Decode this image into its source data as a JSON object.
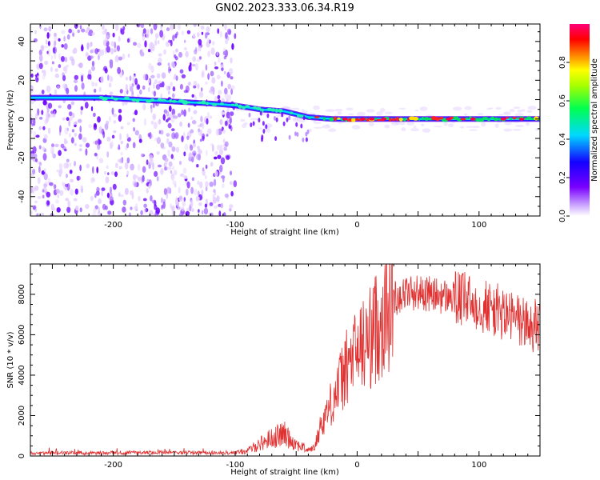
{
  "title": "GN02.2023.333.06.34.R19",
  "colors": {
    "snr_line": "#e03030",
    "axis": "#000000"
  },
  "chart_data": [
    {
      "type": "heatmap",
      "xlabel": "Height of straight line (km)",
      "ylabel": "Frequency (Hz)",
      "xlim": [
        -268,
        150
      ],
      "ylim": [
        -50,
        49
      ],
      "xticks": [
        -200,
        -100,
        0,
        100
      ],
      "yticks": [
        -40,
        -20,
        0,
        20,
        40
      ],
      "colorbar": {
        "label": "Normalized spectral amplitude",
        "range": [
          0,
          1
        ],
        "ticks": [
          "0.0",
          "0.2",
          "0.4",
          "0.6",
          "0.8"
        ],
        "colormap": "rainbow (purple→blue→cyan→green→yellow→red→pink)"
      },
      "ridge": {
        "x": [
          -268,
          -210,
          -180,
          -150,
          -120,
          -100,
          -80,
          -60,
          -40,
          -20,
          0,
          50,
          100,
          150
        ],
        "frequency": [
          11,
          11,
          10,
          9,
          8,
          7,
          5,
          4,
          1,
          0,
          0,
          0,
          0,
          0
        ]
      },
      "noise_region_x": [
        -268,
        -100
      ]
    },
    {
      "type": "line",
      "xlabel": "Height of straight line (km)",
      "ylabel": "SNR (10 * v/v)",
      "xlim": [
        -268,
        150
      ],
      "ylim": [
        0,
        9500
      ],
      "xticks": [
        -200,
        -100,
        0,
        100
      ],
      "yticks": [
        0,
        2000,
        4000,
        6000,
        8000
      ],
      "envelope": {
        "x": [
          -268,
          -200,
          -150,
          -100,
          -90,
          -80,
          -70,
          -60,
          -50,
          -40,
          -35,
          -30,
          -20,
          -10,
          0,
          10,
          20,
          30,
          40,
          50,
          60,
          70,
          80,
          90,
          100,
          110,
          120,
          130,
          140,
          150
        ],
        "snr": [
          150,
          150,
          180,
          160,
          250,
          600,
          900,
          1100,
          600,
          300,
          400,
          1500,
          2800,
          4200,
          5200,
          5800,
          6800,
          7800,
          8100,
          8100,
          8000,
          7900,
          7800,
          7700,
          7500,
          7300,
          7000,
          6800,
          6500,
          6300
        ]
      }
    }
  ]
}
